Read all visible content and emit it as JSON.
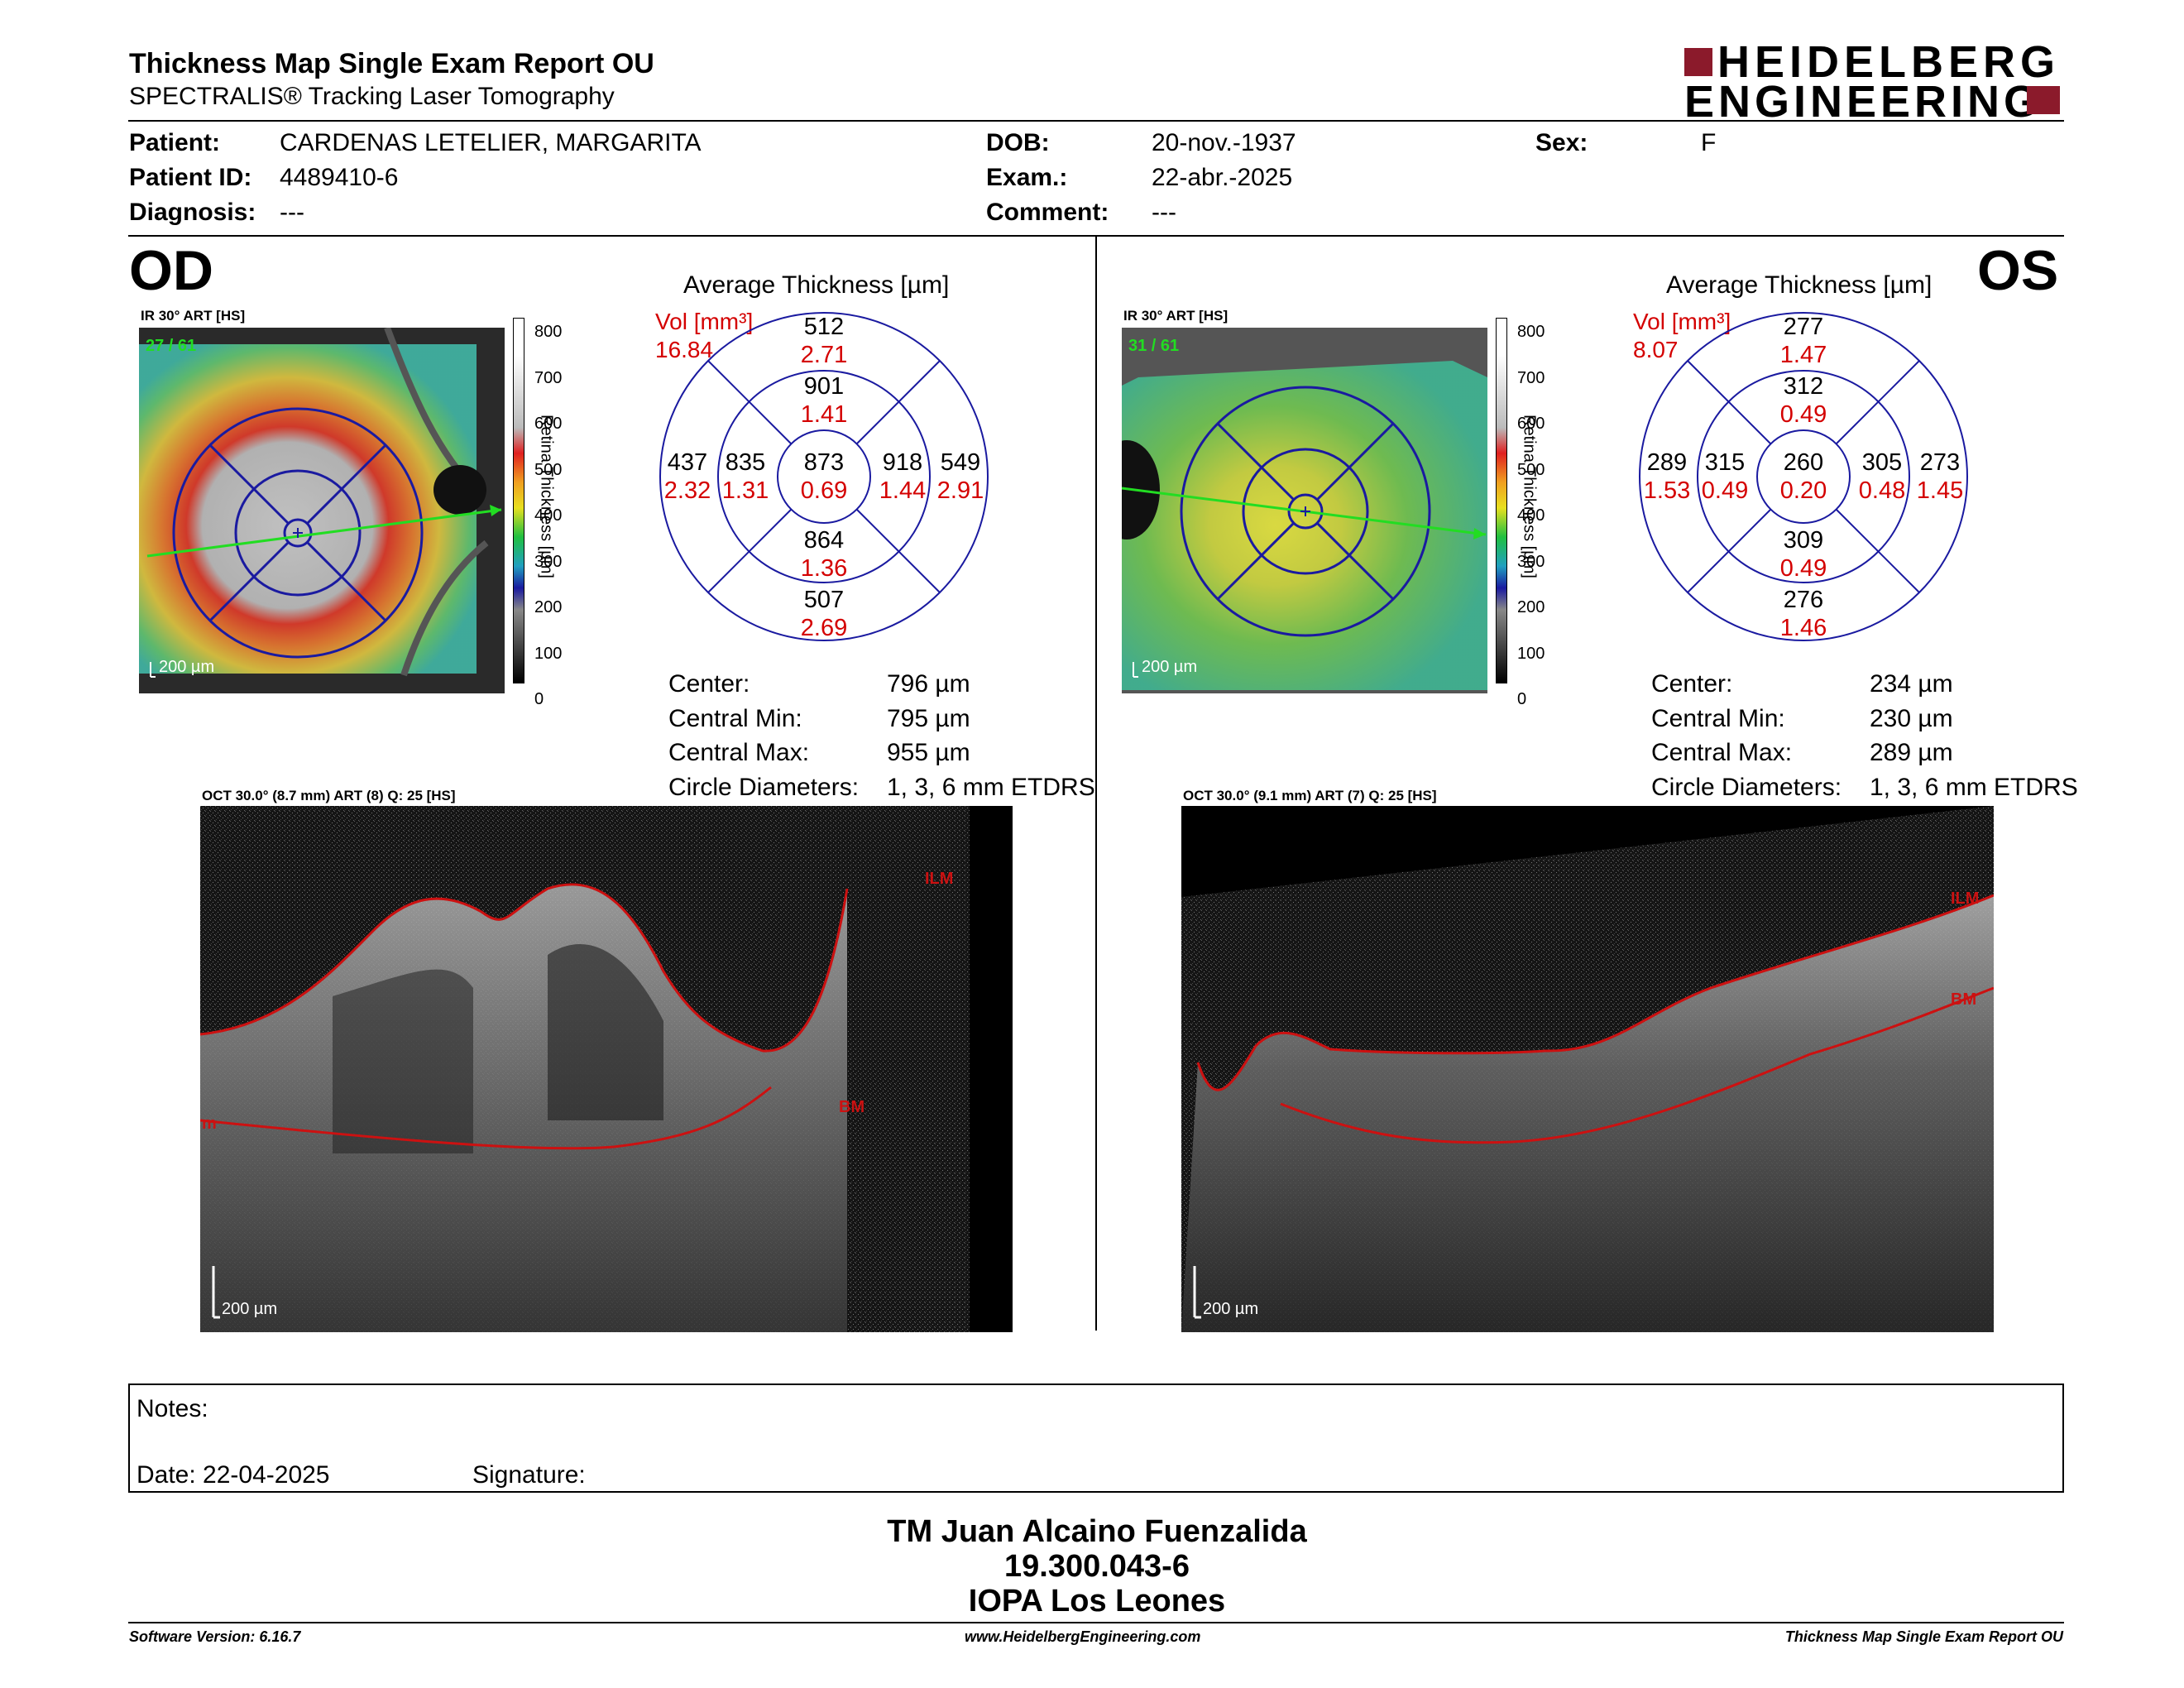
{
  "header": {
    "title": "Thickness Map Single Exam Report OU",
    "subtitle": "SPECTRALIS® Tracking Laser Tomography",
    "logo_line1": "HEIDELBERG",
    "logo_line2": "ENGINEERING"
  },
  "patient": {
    "patient_label": "Patient:",
    "patient_value": "CARDENAS LETELIER, MARGARITA",
    "id_label": "Patient ID:",
    "id_value": "4489410-6",
    "diagnosis_label": "Diagnosis:",
    "diagnosis_value": "---",
    "dob_label": "DOB:",
    "dob_value": "20-nov.-1937",
    "exam_label": "Exam.:",
    "exam_value": "22-abr.-2025",
    "comment_label": "Comment:",
    "comment_value": "---",
    "sex_label": "Sex:",
    "sex_value": "F"
  },
  "colorbar": {
    "ticks": [
      "800",
      "700",
      "600",
      "500",
      "400",
      "300",
      "200",
      "100",
      "0"
    ],
    "title": "Retina  Thickness [µm]"
  },
  "od": {
    "eye": "OD",
    "ir_caption": "IR 30° ART [HS]",
    "ir_overlay": "27 / 61",
    "ir_scale": "200 µm",
    "panel_title": "Average Thickness [µm]",
    "vol_label": "Vol [mm³]",
    "vol_value": "16.84",
    "grid": {
      "center": [
        "873",
        "0.69"
      ],
      "inner_top": [
        "901",
        "1.41"
      ],
      "inner_bottom": [
        "864",
        "1.36"
      ],
      "inner_left": [
        "835",
        "1.31"
      ],
      "inner_right": [
        "918",
        "1.44"
      ],
      "outer_top": [
        "512",
        "2.71"
      ],
      "outer_bottom": [
        "507",
        "2.69"
      ],
      "outer_left": [
        "437",
        "2.32"
      ],
      "outer_right": [
        "549",
        "2.91"
      ]
    },
    "stats": [
      {
        "label": "Center:",
        "value": "796 µm"
      },
      {
        "label": "Central Min:",
        "value": "795 µm"
      },
      {
        "label": "Central Max:",
        "value": "955 µm"
      },
      {
        "label": "Circle Diameters:",
        "value": "1, 3, 6 mm ETDRS"
      }
    ],
    "oct_caption": "OCT 30.0° (8.7 mm) ART (8) Q: 25 [HS]",
    "oct_ilm": "ILM",
    "oct_bm": "BM",
    "oct_edge": "m",
    "oct_scale": "200 µm"
  },
  "os": {
    "eye": "OS",
    "ir_caption": "IR 30° ART [HS]",
    "ir_overlay": "31 / 61",
    "ir_scale": "200 µm",
    "panel_title": "Average Thickness [µm]",
    "vol_label": "Vol [mm³]",
    "vol_value": "8.07",
    "grid": {
      "center": [
        "260",
        "0.20"
      ],
      "inner_top": [
        "312",
        "0.49"
      ],
      "inner_bottom": [
        "309",
        "0.49"
      ],
      "inner_left": [
        "315",
        "0.49"
      ],
      "inner_right": [
        "305",
        "0.48"
      ],
      "outer_top": [
        "277",
        "1.47"
      ],
      "outer_bottom": [
        "276",
        "1.46"
      ],
      "outer_left": [
        "289",
        "1.53"
      ],
      "outer_right": [
        "273",
        "1.45"
      ]
    },
    "stats": [
      {
        "label": "Center:",
        "value": "234 µm"
      },
      {
        "label": "Central Min:",
        "value": "230 µm"
      },
      {
        "label": "Central Max:",
        "value": "289 µm"
      },
      {
        "label": "Circle Diameters:",
        "value": "1, 3, 6 mm ETDRS"
      }
    ],
    "oct_caption": "OCT 30.0° (9.1 mm) ART (7) Q: 25 [HS]",
    "oct_ilm": "ILM",
    "oct_bm": "BM",
    "oct_scale": "200 µm"
  },
  "notes": {
    "label": "Notes:",
    "date_label": "Date: 22-04-2025",
    "signature_label": "Signature:"
  },
  "technician": {
    "name": "TM Juan Alcaino Fuenzalida",
    "id": "19.300.043-6",
    "clinic": "IOPA Los Leones"
  },
  "footer": {
    "software": "Software Version: 6.16.7",
    "website": "www.HeidelbergEngineering.com",
    "report": "Thickness Map Single Exam Report OU"
  },
  "colors": {
    "red_text": "#d40000",
    "grid_blue": "#1a1aa0",
    "segmentation_red": "#cc1111",
    "scan_green": "#22dd22",
    "logo_red": "#8b1a2b"
  }
}
